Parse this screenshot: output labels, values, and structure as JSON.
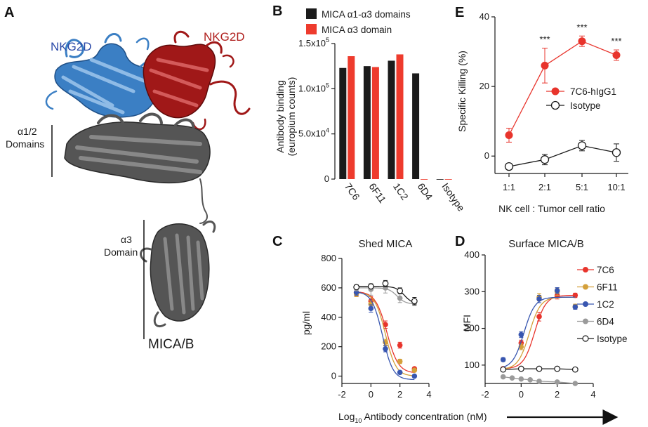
{
  "colors": {
    "blue": "#3b7fc4",
    "red_protein": "#a01818",
    "gray_protein": "#555555",
    "bar_black": "#1b1b1b",
    "bar_red": "#ee3b2d",
    "c7C6": "#e8342c",
    "c6F11": "#d4a03a",
    "c1C2": "#3856b0",
    "c6D4": "#9a9a9a",
    "isotype": "#1a1a1a"
  },
  "panelA": {
    "label": "A",
    "nkg2d_blue": "NKG2D",
    "nkg2d_red": "NKG2D",
    "a12_line1": "α1/2",
    "a12_line2": "Domains",
    "a3_line1": "α3",
    "a3_line2": "Domain",
    "mica": "MICA/B"
  },
  "panelB": {
    "label": "B",
    "ylabel_line1": "Antibody binding",
    "ylabel_line2": "(europium counts)",
    "y_base": "x10",
    "y_ticks": [
      {
        "mant": "0",
        "exp": ""
      },
      {
        "mant": "5.0",
        "exp": "4"
      },
      {
        "mant": "1.0",
        "exp": "5"
      },
      {
        "mant": "1.5",
        "exp": "5"
      }
    ],
    "legend": [
      "MICA α1-α3 domains",
      "MICA α3 domain"
    ]
  },
  "panelC": {
    "label": "C",
    "title": "Shed MICA",
    "ylabel": "pg/ml"
  },
  "panelD": {
    "label": "D",
    "title": "Surface MICA/B",
    "ylabel": "MFI",
    "legend": [
      "7C6",
      "6F11",
      "1C2",
      "6D4",
      "Isotype"
    ]
  },
  "panelE": {
    "label": "E",
    "ylabel": "Specific Killing (%)",
    "xlabel": "NK cell : Tumor cell ratio",
    "legend": [
      "7C6-hIgG1",
      "Isotype"
    ],
    "stars": [
      "***",
      "***",
      "***"
    ]
  },
  "shared_xlabel": {
    "pre": "Log",
    "sub": "10",
    "post": " Antibody concentration (nM)"
  },
  "chart_data": [
    {
      "type": "bar",
      "panel": "B",
      "categories": [
        "7C6",
        "6F11",
        "1C2",
        "6D4",
        "Isotype"
      ],
      "series": [
        {
          "name": "MICA α1-α3 domains",
          "values": [
            123000,
            125000,
            131000,
            117000,
            0
          ]
        },
        {
          "name": "MICA α3 domain",
          "values": [
            136000,
            124000,
            138000,
            0,
            0
          ]
        }
      ],
      "ylim": [
        0,
        150000
      ],
      "ylabel": "Antibody binding (europium counts)"
    },
    {
      "type": "scatter",
      "panel": "C",
      "title": "Shed MICA",
      "xlim": [
        -2,
        4
      ],
      "ylim": [
        -50,
        800
      ],
      "x_ticks": [
        -2,
        0,
        2,
        4
      ],
      "y_ticks": [
        0,
        200,
        400,
        600,
        800
      ],
      "ylabel": "pg/ml",
      "series": [
        {
          "name": "7C6",
          "x": [
            -1,
            0,
            1,
            2,
            3
          ],
          "y": [
            570,
            510,
            350,
            210,
            50
          ],
          "err": [
            25,
            30,
            25,
            20,
            8
          ],
          "fit": {
            "top": 575,
            "bottom": 20,
            "ec50": 1.1,
            "slope": 1.1
          }
        },
        {
          "name": "6F11",
          "x": [
            -1,
            0,
            1,
            2,
            3
          ],
          "y": [
            560,
            490,
            230,
            100,
            40
          ],
          "err": [
            20,
            25,
            20,
            15,
            8
          ],
          "fit": {
            "top": 570,
            "bottom": 0,
            "ec50": 1.0,
            "slope": 1.2
          }
        },
        {
          "name": "1C2",
          "x": [
            -1,
            0,
            1,
            2,
            3
          ],
          "y": [
            570,
            460,
            185,
            25,
            0
          ],
          "err": [
            20,
            25,
            20,
            10,
            8
          ],
          "fit": {
            "top": 575,
            "bottom": -25,
            "ec50": 0.8,
            "slope": 1.2
          }
        },
        {
          "name": "6D4",
          "x": [
            -1,
            0,
            1,
            2,
            3
          ],
          "y": [
            600,
            590,
            600,
            530,
            500
          ],
          "err": [
            20,
            40,
            35,
            30,
            20
          ],
          "fit": {
            "top": 600,
            "bottom": 490,
            "ec50": 1.8,
            "slope": 1.5
          }
        },
        {
          "name": "Isotype",
          "x": [
            -1,
            0,
            1,
            2,
            3
          ],
          "y": [
            605,
            610,
            630,
            580,
            510
          ],
          "err": [
            15,
            15,
            20,
            20,
            25
          ],
          "fit": {
            "top": 610,
            "bottom": 490,
            "ec50": 2.3,
            "slope": 1.5
          }
        }
      ]
    },
    {
      "type": "scatter",
      "panel": "D",
      "title": "Surface MICA/B",
      "xlim": [
        -2,
        4
      ],
      "ylim": [
        50,
        400
      ],
      "x_ticks": [
        -2,
        0,
        2,
        4
      ],
      "y_ticks": [
        100,
        200,
        300,
        400
      ],
      "ylabel": "MFI",
      "series": [
        {
          "name": "7C6",
          "x": [
            -1,
            0,
            1,
            2,
            3
          ],
          "y": [
            90,
            160,
            232,
            290,
            290
          ],
          "err": [
            5,
            8,
            12,
            10,
            6
          ],
          "fit": {
            "bottom": 90,
            "top": 290,
            "ec50": 0.75,
            "slope": 1.4
          }
        },
        {
          "name": "6F11",
          "x": [
            -1,
            0,
            1,
            2,
            3
          ],
          "y": [
            88,
            150,
            285,
            300,
            260
          ],
          "err": [
            5,
            8,
            10,
            10,
            6
          ],
          "fit": {
            "bottom": 88,
            "top": 285,
            "ec50": 0.45,
            "slope": 1.4
          }
        },
        {
          "name": "1C2",
          "x": [
            -1,
            0,
            1,
            2,
            3
          ],
          "y": [
            115,
            183,
            280,
            303,
            258
          ],
          "err": [
            5,
            8,
            10,
            8,
            6
          ],
          "fit": {
            "bottom": 90,
            "top": 285,
            "ec50": 0.15,
            "slope": 1.4
          }
        },
        {
          "name": "6D4",
          "x": [
            -1,
            -0.5,
            0,
            0.5,
            1,
            2,
            3
          ],
          "y": [
            68,
            65,
            62,
            60,
            56,
            54,
            50
          ],
          "err": [
            3,
            3,
            3,
            3,
            3,
            3,
            3
          ],
          "fit": null
        },
        {
          "name": "Isotype",
          "x": [
            -1,
            0,
            1,
            2,
            3
          ],
          "y": [
            88,
            90,
            90,
            90,
            88
          ],
          "err": [
            3,
            3,
            3,
            3,
            3
          ],
          "fit": null
        }
      ]
    },
    {
      "type": "line",
      "panel": "E",
      "categories": [
        "1:1",
        "2:1",
        "5:1",
        "10:1"
      ],
      "ylim": [
        -5,
        40
      ],
      "y_ticks": [
        0,
        20,
        40
      ],
      "ylabel": "Specific Killing (%)",
      "xlabel": "NK cell : Tumor cell ratio",
      "series": [
        {
          "name": "7C6-hIgG1",
          "values": [
            6,
            26,
            33,
            29
          ],
          "err": [
            2,
            5,
            1.5,
            1.5
          ]
        },
        {
          "name": "Isotype",
          "values": [
            -3,
            -1,
            3,
            1
          ],
          "err": [
            0.5,
            1.5,
            1.5,
            2.5
          ]
        }
      ]
    }
  ]
}
